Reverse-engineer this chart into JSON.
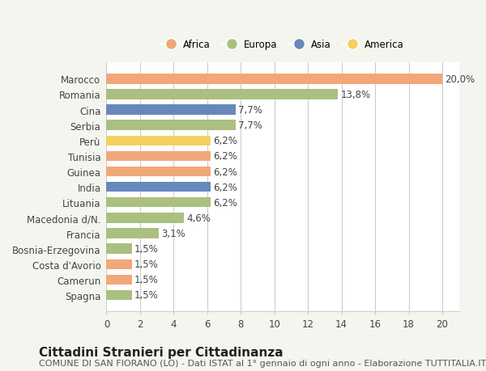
{
  "countries": [
    "Marocco",
    "Romania",
    "Cina",
    "Serbia",
    "Perù",
    "Tunisia",
    "Guinea",
    "India",
    "Lituania",
    "Macedonia d/N.",
    "Francia",
    "Bosnia-Erzegovina",
    "Costa d'Avorio",
    "Camerun",
    "Spagna"
  ],
  "values": [
    20.0,
    13.8,
    7.7,
    7.7,
    6.2,
    6.2,
    6.2,
    6.2,
    6.2,
    4.6,
    3.1,
    1.5,
    1.5,
    1.5,
    1.5
  ],
  "labels": [
    "20,0%",
    "13,8%",
    "7,7%",
    "7,7%",
    "6,2%",
    "6,2%",
    "6,2%",
    "6,2%",
    "6,2%",
    "4,6%",
    "3,1%",
    "1,5%",
    "1,5%",
    "1,5%",
    "1,5%"
  ],
  "continents": [
    "Africa",
    "Europa",
    "Asia",
    "Europa",
    "America",
    "Africa",
    "Africa",
    "Asia",
    "Europa",
    "Europa",
    "Europa",
    "Europa",
    "Africa",
    "Africa",
    "Europa"
  ],
  "colors": {
    "Africa": "#F0A878",
    "Europa": "#AABF80",
    "Asia": "#6688BB",
    "America": "#F5D060"
  },
  "legend_order": [
    "Africa",
    "Europa",
    "Asia",
    "America"
  ],
  "legend_colors": [
    "#F0A878",
    "#AABF80",
    "#6688BB",
    "#F5D060"
  ],
  "title": "Cittadini Stranieri per Cittadinanza",
  "subtitle": "COMUNE DI SAN FIORANO (LO) - Dati ISTAT al 1° gennaio di ogni anno - Elaborazione TUTTITALIA.IT",
  "xlim": [
    0,
    21
  ],
  "xticks": [
    0,
    2,
    4,
    6,
    8,
    10,
    12,
    14,
    16,
    18,
    20
  ],
  "bg_color": "#f5f5f0",
  "bar_bg_color": "#ffffff",
  "grid_color": "#cccccc",
  "label_fontsize": 8.5,
  "tick_fontsize": 8.5,
  "title_fontsize": 11,
  "subtitle_fontsize": 8
}
